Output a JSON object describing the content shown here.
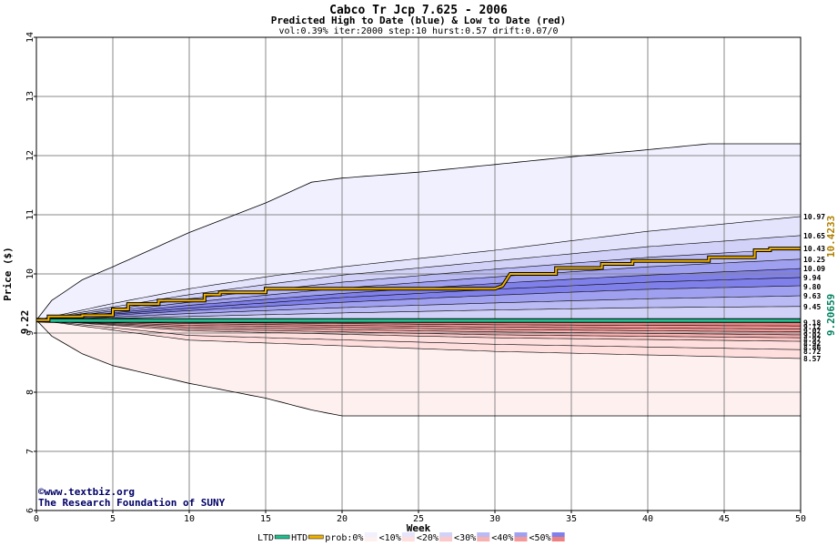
{
  "header": {
    "title": "Cabco Tr Jcp 7.625 - 2006",
    "subtitle": "Predicted High to Date (blue) &  Low to Date (red)",
    "params": "vol:0.39% iter:2000 step:10 hurst:0.57 drift:0.07/0"
  },
  "attribution": {
    "site": "www.textbiz.org",
    "org": "The Research Foundation of SUNY",
    "copyright_symbol": "©"
  },
  "chart_data": {
    "type": "area",
    "title": "Cabco Tr Jcp 7.625 - 2006",
    "xlabel": "Week",
    "ylabel": "Price ($)",
    "xlim": [
      0,
      50
    ],
    "ylim": [
      6,
      14
    ],
    "x_ticks": [
      0,
      5,
      10,
      15,
      20,
      25,
      30,
      35,
      40,
      45,
      50
    ],
    "y_ticks": [
      6,
      7,
      8,
      9,
      10,
      11,
      12,
      13,
      14
    ],
    "grid": true,
    "start_price": 9.22,
    "start_price_label": "9.22",
    "htd_final_label": "10.4233",
    "ltd_final_label": "9.20659",
    "colors": {
      "htd": "#f0b000",
      "ltd": "#20c090",
      "band_outer_high": "#f0f0ff",
      "band_outer_low": "#fff0f0",
      "blue_bands": [
        "#e4e4fc",
        "#d2d2f8",
        "#babaf4",
        "#a0a0f0",
        "#8080ea"
      ],
      "red_bands": [
        "#ffdede",
        "#fcc8c8",
        "#f8b0b0",
        "#f49898",
        "#ee8080"
      ]
    },
    "envelope_high": [
      [
        0,
        9.22
      ],
      [
        1,
        9.55
      ],
      [
        3,
        9.9
      ],
      [
        5,
        10.12
      ],
      [
        10,
        10.7
      ],
      [
        15,
        11.2
      ],
      [
        18,
        11.55
      ],
      [
        20,
        11.62
      ],
      [
        25,
        11.72
      ],
      [
        30,
        11.85
      ],
      [
        35,
        11.98
      ],
      [
        40,
        12.1
      ],
      [
        44,
        12.2
      ],
      [
        50,
        12.2
      ]
    ],
    "envelope_low": [
      [
        0,
        9.22
      ],
      [
        1,
        8.95
      ],
      [
        3,
        8.65
      ],
      [
        5,
        8.45
      ],
      [
        10,
        8.15
      ],
      [
        15,
        7.9
      ],
      [
        18,
        7.7
      ],
      [
        20,
        7.6
      ],
      [
        50,
        7.6
      ]
    ],
    "high_quantiles": [
      {
        "name": "10.97",
        "points": [
          [
            0,
            9.22
          ],
          [
            5,
            9.5
          ],
          [
            10,
            9.75
          ],
          [
            15,
            9.95
          ],
          [
            20,
            10.12
          ],
          [
            30,
            10.4
          ],
          [
            40,
            10.72
          ],
          [
            50,
            10.97
          ]
        ]
      },
      {
        "name": "10.65",
        "points": [
          [
            0,
            9.22
          ],
          [
            5,
            9.44
          ],
          [
            10,
            9.65
          ],
          [
            15,
            9.82
          ],
          [
            20,
            9.98
          ],
          [
            30,
            10.22
          ],
          [
            40,
            10.46
          ],
          [
            50,
            10.65
          ]
        ]
      },
      {
        "name": "10.43",
        "points": [
          [
            0,
            9.22
          ],
          [
            5,
            9.4
          ],
          [
            10,
            9.58
          ],
          [
            15,
            9.72
          ],
          [
            20,
            9.86
          ],
          [
            30,
            10.08
          ],
          [
            40,
            10.28
          ],
          [
            50,
            10.43
          ]
        ]
      },
      {
        "name": "10.25",
        "points": [
          [
            0,
            9.22
          ],
          [
            5,
            9.37
          ],
          [
            10,
            9.52
          ],
          [
            15,
            9.64
          ],
          [
            20,
            9.76
          ],
          [
            30,
            9.95
          ],
          [
            40,
            10.12
          ],
          [
            50,
            10.25
          ]
        ]
      },
      {
        "name": "10.09",
        "points": [
          [
            0,
            9.22
          ],
          [
            5,
            9.34
          ],
          [
            10,
            9.47
          ],
          [
            15,
            9.57
          ],
          [
            20,
            9.67
          ],
          [
            30,
            9.84
          ],
          [
            40,
            9.98
          ],
          [
            50,
            10.09
          ]
        ]
      },
      {
        "name": "9.94",
        "points": [
          [
            0,
            9.22
          ],
          [
            5,
            9.32
          ],
          [
            10,
            9.42
          ],
          [
            15,
            9.51
          ],
          [
            20,
            9.6
          ],
          [
            30,
            9.74
          ],
          [
            40,
            9.86
          ],
          [
            50,
            9.94
          ]
        ]
      },
      {
        "name": "9.80",
        "points": [
          [
            0,
            9.22
          ],
          [
            5,
            9.3
          ],
          [
            10,
            9.38
          ],
          [
            15,
            9.45
          ],
          [
            20,
            9.52
          ],
          [
            30,
            9.64
          ],
          [
            40,
            9.74
          ],
          [
            50,
            9.8
          ]
        ]
      },
      {
        "name": "9.63",
        "points": [
          [
            0,
            9.22
          ],
          [
            5,
            9.27
          ],
          [
            10,
            9.33
          ],
          [
            15,
            9.38
          ],
          [
            20,
            9.43
          ],
          [
            30,
            9.51
          ],
          [
            40,
            9.58
          ],
          [
            50,
            9.63
          ]
        ]
      },
      {
        "name": "9.45",
        "points": [
          [
            0,
            9.22
          ],
          [
            5,
            9.25
          ],
          [
            10,
            9.28
          ],
          [
            15,
            9.31
          ],
          [
            20,
            9.34
          ],
          [
            30,
            9.39
          ],
          [
            40,
            9.43
          ],
          [
            50,
            9.45
          ]
        ]
      }
    ],
    "low_quantiles": [
      {
        "name": "9.18",
        "points": [
          [
            0,
            9.22
          ],
          [
            10,
            9.2
          ],
          [
            30,
            9.19
          ],
          [
            50,
            9.18
          ]
        ]
      },
      {
        "name": "9.12",
        "points": [
          [
            0,
            9.22
          ],
          [
            10,
            9.18
          ],
          [
            30,
            9.14
          ],
          [
            50,
            9.12
          ]
        ]
      },
      {
        "name": "9.07",
        "points": [
          [
            0,
            9.22
          ],
          [
            10,
            9.16
          ],
          [
            30,
            9.1
          ],
          [
            50,
            9.07
          ]
        ]
      },
      {
        "name": "9.02",
        "points": [
          [
            0,
            9.22
          ],
          [
            10,
            9.13
          ],
          [
            30,
            9.06
          ],
          [
            50,
            9.02
          ]
        ]
      },
      {
        "name": "8.97",
        "points": [
          [
            0,
            9.22
          ],
          [
            10,
            9.1
          ],
          [
            30,
            9.02
          ],
          [
            50,
            8.97
          ]
        ]
      },
      {
        "name": "8.92",
        "points": [
          [
            0,
            9.22
          ],
          [
            10,
            9.07
          ],
          [
            30,
            8.97
          ],
          [
            50,
            8.92
          ]
        ]
      },
      {
        "name": "8.86",
        "points": [
          [
            0,
            9.22
          ],
          [
            10,
            9.04
          ],
          [
            30,
            8.92
          ],
          [
            50,
            8.86
          ]
        ]
      },
      {
        "name": "8.72",
        "points": [
          [
            0,
            9.22
          ],
          [
            10,
            8.96
          ],
          [
            30,
            8.81
          ],
          [
            50,
            8.72
          ]
        ]
      },
      {
        "name": "8.57",
        "points": [
          [
            0,
            9.22
          ],
          [
            10,
            8.88
          ],
          [
            30,
            8.69
          ],
          [
            50,
            8.57
          ]
        ]
      }
    ],
    "high_to_date_path": [
      [
        0,
        9.22
      ],
      [
        0.8,
        9.22
      ],
      [
        0.8,
        9.28
      ],
      [
        3,
        9.28
      ],
      [
        3,
        9.3
      ],
      [
        5,
        9.3
      ],
      [
        5,
        9.4
      ],
      [
        6,
        9.4
      ],
      [
        6,
        9.49
      ],
      [
        8,
        9.49
      ],
      [
        8,
        9.55
      ],
      [
        11,
        9.55
      ],
      [
        11,
        9.65
      ],
      [
        12,
        9.65
      ],
      [
        12,
        9.69
      ],
      [
        15,
        9.69
      ],
      [
        15,
        9.75
      ],
      [
        30,
        9.75
      ],
      [
        30.5,
        9.8
      ],
      [
        31,
        10.0
      ],
      [
        34,
        10.0
      ],
      [
        34,
        10.1
      ],
      [
        37,
        10.1
      ],
      [
        37,
        10.17
      ],
      [
        39,
        10.17
      ],
      [
        39,
        10.22
      ],
      [
        44,
        10.22
      ],
      [
        44,
        10.28
      ],
      [
        47,
        10.28
      ],
      [
        47,
        10.4
      ],
      [
        48,
        10.4
      ],
      [
        48,
        10.43
      ],
      [
        50,
        10.43
      ]
    ],
    "low_to_date_path": [
      [
        0,
        9.22
      ],
      [
        1,
        9.21
      ],
      [
        50,
        9.21
      ]
    ],
    "legend": [
      {
        "label": "LTD",
        "type": "line",
        "color": "#20c090"
      },
      {
        "label": "HTD",
        "type": "line",
        "color": "#f0b000"
      },
      {
        "label": "prob:0%",
        "type": "swatch",
        "colors": [
          "#f0f0ff",
          "#fff0f0"
        ]
      },
      {
        "label": "<10%",
        "type": "swatch",
        "colors": [
          "#e4e4fc",
          "#ffdede"
        ]
      },
      {
        "label": "<20%",
        "type": "swatch",
        "colors": [
          "#d2d2f8",
          "#fcc8c8"
        ]
      },
      {
        "label": "<30%",
        "type": "swatch",
        "colors": [
          "#babaf4",
          "#f8b0b0"
        ]
      },
      {
        "label": "<40%",
        "type": "swatch",
        "colors": [
          "#a0a0f0",
          "#f49898"
        ]
      },
      {
        "label": "<50%",
        "type": "swatch",
        "colors": [
          "#8080ea",
          "#ee8080"
        ]
      }
    ]
  }
}
